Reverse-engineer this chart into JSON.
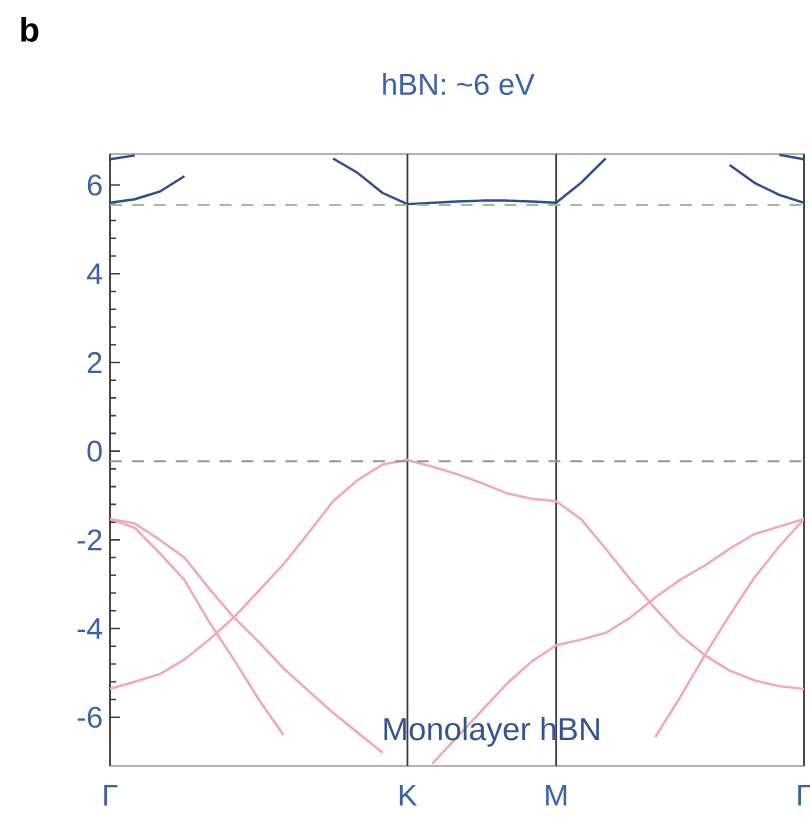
{
  "chart_data": {
    "type": "line",
    "title": "hBN: ~6 eV",
    "annotations": [
      "b",
      "Monolayer hBN"
    ],
    "categories": [
      "Γ",
      null,
      null,
      null,
      null,
      null,
      null,
      null,
      null,
      null,
      null,
      null,
      "K",
      null,
      null,
      null,
      null,
      null,
      "M",
      null,
      null,
      null,
      null,
      null,
      null,
      null,
      null,
      null,
      "Γ"
    ],
    "ylim": [
      -7.1,
      6.7
    ],
    "yticks": [
      -6,
      -4,
      -2,
      0,
      2,
      4,
      6
    ],
    "grid": "x",
    "ref_lines": [
      {
        "axis": "y",
        "value": 5.55,
        "label": null,
        "color": "#9cbf9a",
        "line_style": "dashed"
      },
      {
        "axis": "y",
        "value": -0.23,
        "label": null,
        "color": "#8a9f88",
        "line_style": "dashed"
      }
    ],
    "series": [
      {
        "color": "#2b4f8e",
        "values": [
          5.6,
          5.68,
          5.85,
          6.2,
          null,
          null,
          null,
          null,
          null,
          null,
          null,
          null,
          null,
          null,
          null,
          null,
          null,
          null,
          null,
          null,
          null,
          null,
          null,
          null,
          null,
          null,
          null,
          null,
          null
        ]
      },
      {
        "color": "#2b4f8e",
        "values": [
          6.58,
          6.67,
          null,
          null,
          null,
          null,
          null,
          null,
          null,
          null,
          null,
          null,
          null,
          null,
          null,
          null,
          null,
          null,
          null,
          null,
          null,
          null,
          null,
          null,
          null,
          null,
          null,
          null,
          null
        ]
      },
      {
        "color": "#2b4f8e",
        "values": [
          null,
          null,
          null,
          null,
          null,
          null,
          null,
          null,
          null,
          6.6,
          6.27,
          5.82,
          5.57,
          5.6,
          5.63,
          5.65,
          5.65,
          5.63,
          5.6,
          6.05,
          6.6,
          null,
          null,
          null,
          null,
          null,
          null,
          null,
          null
        ]
      },
      {
        "color": "#2b4f8e",
        "values": [
          null,
          null,
          null,
          null,
          null,
          null,
          null,
          null,
          null,
          null,
          null,
          null,
          null,
          null,
          null,
          null,
          null,
          null,
          null,
          null,
          null,
          null,
          null,
          null,
          null,
          6.45,
          6.05,
          5.78,
          5.6
        ]
      },
      {
        "color": "#2b4f8e",
        "values": [
          null,
          null,
          null,
          null,
          null,
          null,
          null,
          null,
          null,
          null,
          null,
          null,
          null,
          null,
          null,
          null,
          null,
          null,
          null,
          null,
          null,
          null,
          null,
          null,
          null,
          null,
          null,
          6.68,
          6.58
        ]
      },
      {
        "color": "#f2a7b5",
        "values": [
          -5.36,
          -5.2,
          -5.03,
          -4.7,
          -4.25,
          -3.75,
          -3.15,
          -2.55,
          -1.85,
          -1.13,
          -0.65,
          -0.3,
          -0.2,
          -0.35,
          -0.52,
          -0.72,
          -0.95,
          -1.07,
          -1.13,
          -1.53,
          -2.2,
          -2.9,
          -3.55,
          -4.15,
          -4.6,
          -4.95,
          -5.17,
          -5.3,
          -5.36
        ]
      },
      {
        "color": "#f2a7b5",
        "values": [
          -1.53,
          -1.73,
          -2.3,
          -2.9,
          -3.85,
          -4.7,
          -5.6,
          -6.4,
          null,
          null,
          null,
          null,
          null,
          null,
          null,
          null,
          null,
          null,
          null,
          null,
          null,
          null,
          null,
          null,
          null,
          null,
          null,
          null,
          null
        ]
      },
      {
        "color": "#f2a7b5",
        "values": [
          -1.53,
          -1.63,
          -2.0,
          -2.4,
          -3.1,
          -3.75,
          -4.3,
          -4.9,
          -5.4,
          -5.9,
          -6.35,
          -6.8,
          null,
          null,
          null,
          null,
          null,
          null,
          null,
          null,
          null,
          null,
          null,
          null,
          null,
          null,
          null,
          null,
          null
        ]
      },
      {
        "color": "#f2a7b5",
        "values": [
          null,
          null,
          null,
          null,
          null,
          null,
          null,
          null,
          null,
          null,
          null,
          null,
          null,
          -7.05,
          -6.45,
          -5.85,
          -5.25,
          -4.75,
          -4.38,
          -4.25,
          -4.1,
          -3.75,
          -3.3,
          -2.9,
          -2.58,
          -2.2,
          -1.87,
          -1.7,
          -1.53
        ]
      },
      {
        "color": "#f2a7b5",
        "values": [
          null,
          null,
          null,
          null,
          null,
          null,
          null,
          null,
          null,
          null,
          null,
          null,
          null,
          null,
          null,
          null,
          null,
          null,
          null,
          null,
          null,
          null,
          -6.45,
          -5.55,
          -4.6,
          -3.7,
          -2.85,
          -2.15,
          -1.53
        ]
      }
    ]
  }
}
